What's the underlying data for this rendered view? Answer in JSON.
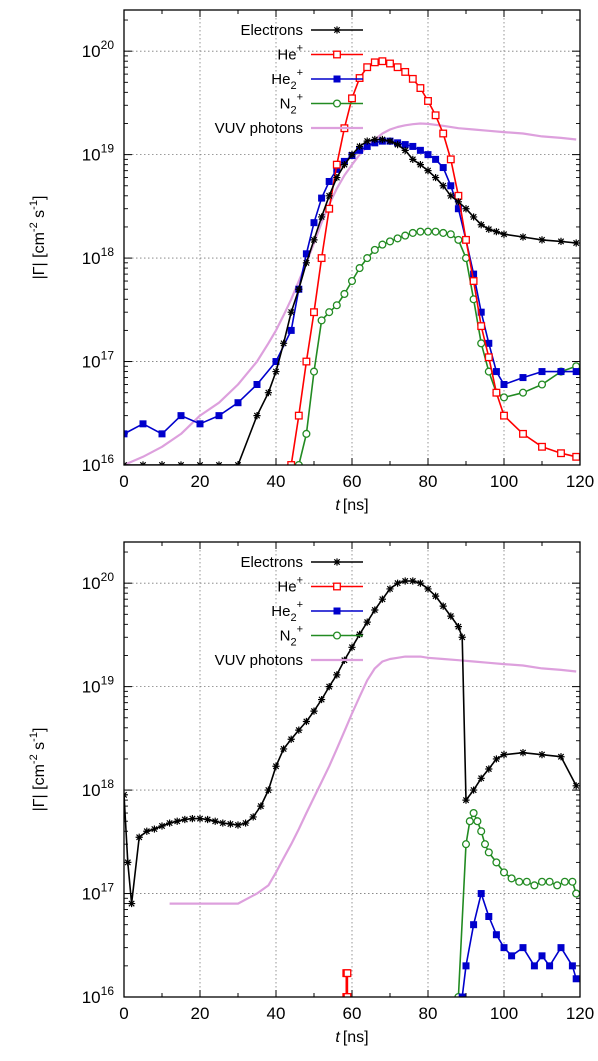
{
  "chart_data": [
    {
      "type": "line",
      "xlabel_italic": "t",
      "xlabel_unit": "[ns]",
      "ylabel_main": "|Γ| [cm",
      "ylabel_exp1": "-2",
      "ylabel_mid": " s",
      "ylabel_exp2": "-1",
      "ylabel_end": "]",
      "xlim": [
        0,
        120
      ],
      "ylim": [
        1e+16,
        2.5e+20
      ],
      "yscale": "log",
      "grid": true,
      "legend_position": "top-left",
      "x_ticks": [
        "0",
        "20",
        "40",
        "60",
        "80",
        "100",
        "120"
      ],
      "y_ticks": [
        {
          "base": "10",
          "exp": "16"
        },
        {
          "base": "10",
          "exp": "17"
        },
        {
          "base": "10",
          "exp": "18"
        },
        {
          "base": "10",
          "exp": "19"
        },
        {
          "base": "10",
          "exp": "20"
        }
      ],
      "series": [
        {
          "key": "electrons",
          "name": "Electrons",
          "name_sub": "",
          "name_sup": "",
          "color": "#000000",
          "marker": "star",
          "x": [
            0,
            5,
            10,
            15,
            20,
            25,
            30,
            35,
            38,
            40,
            42,
            44,
            46,
            48,
            50,
            52,
            54,
            56,
            58,
            60,
            62,
            64,
            66,
            68,
            70,
            72,
            74,
            76,
            78,
            80,
            82,
            84,
            86,
            88,
            90,
            92,
            94,
            96,
            98,
            100,
            105,
            110,
            115,
            119
          ],
          "y": [
            1e+16,
            1e+16,
            1e+16,
            1e+16,
            1e+16,
            1e+16,
            1e+16,
            3e+16,
            5e+16,
            8e+16,
            1.5e+17,
            3e+17,
            5e+17,
            9e+17,
            1.5e+18,
            2.5e+18,
            4e+18,
            6e+18,
            8e+18,
            1e+19,
            1.2e+19,
            1.35e+19,
            1.4e+19,
            1.4e+19,
            1.35e+19,
            1.25e+19,
            1.1e+19,
            9e+18,
            8e+18,
            7e+18,
            6e+18,
            5e+18,
            4e+18,
            3.5e+18,
            3e+18,
            2.5e+18,
            2.1e+18,
            1.9e+18,
            1.8e+18,
            1.7e+18,
            1.6e+18,
            1.5e+18,
            1.45e+18,
            1.4e+18
          ]
        },
        {
          "key": "he",
          "name": "He",
          "name_sub": "",
          "name_sup": "+",
          "color": "#ff0000",
          "marker": "open-square",
          "x": [
            44,
            46,
            48,
            50,
            52,
            54,
            56,
            58,
            60,
            62,
            64,
            66,
            68,
            70,
            72,
            74,
            76,
            78,
            80,
            82,
            84,
            86,
            88,
            90,
            92,
            94,
            96,
            98,
            100,
            105,
            110,
            115,
            119
          ],
          "y": [
            1e+16,
            3e+16,
            1e+17,
            3e+17,
            1e+18,
            3e+18,
            8e+18,
            1.8e+19,
            3.5e+19,
            5.5e+19,
            7e+19,
            7.8e+19,
            8e+19,
            7.6e+19,
            7e+19,
            6.3e+19,
            5.4e+19,
            4.4e+19,
            3.3e+19,
            2.4e+19,
            1.6e+19,
            9e+18,
            4e+18,
            1.5e+18,
            6e+17,
            2.2e+17,
            1.1e+17,
            5e+16,
            3e+16,
            2e+16,
            1.5e+16,
            1.3e+16,
            1.2e+16
          ]
        },
        {
          "key": "he2",
          "name": "He",
          "name_sub": "2",
          "name_sup": "+",
          "color": "#0000cc",
          "marker": "filled-square",
          "x": [
            0,
            5,
            10,
            15,
            20,
            25,
            30,
            35,
            40,
            44,
            46,
            48,
            50,
            52,
            54,
            56,
            58,
            60,
            62,
            64,
            66,
            68,
            70,
            72,
            74,
            76,
            78,
            80,
            82,
            84,
            86,
            88,
            90,
            92,
            94,
            96,
            98,
            100,
            105,
            110,
            115,
            119
          ],
          "y": [
            2e+16,
            2.5e+16,
            2e+16,
            3e+16,
            2.5e+16,
            3e+16,
            4e+16,
            6e+16,
            1e+17,
            2e+17,
            5e+17,
            1.1e+18,
            2.2e+18,
            3.8e+18,
            5.5e+18,
            7.2e+18,
            8.6e+18,
            9.8e+18,
            1.1e+19,
            1.2e+19,
            1.3e+19,
            1.35e+19,
            1.35e+19,
            1.3e+19,
            1.25e+19,
            1.2e+19,
            1.1e+19,
            1e+19,
            9e+18,
            7.5e+18,
            5e+18,
            3e+18,
            1.5e+18,
            7e+17,
            3e+17,
            1.5e+17,
            8e+16,
            6e+16,
            7e+16,
            8e+16,
            8e+16,
            8e+16
          ]
        },
        {
          "key": "n2",
          "name": "N",
          "name_sub": "2",
          "name_sup": "+",
          "color": "#228b22",
          "marker": "open-circle",
          "x": [
            46,
            48,
            50,
            52,
            54,
            56,
            58,
            60,
            62,
            64,
            66,
            68,
            70,
            72,
            74,
            76,
            78,
            80,
            82,
            84,
            86,
            88,
            90,
            92,
            94,
            96,
            98,
            100,
            105,
            110,
            115,
            119
          ],
          "y": [
            1e+16,
            2e+16,
            8e+16,
            2.5e+17,
            3e+17,
            3.5e+17,
            4.5e+17,
            6e+17,
            8e+17,
            1e+18,
            1.2e+18,
            1.35e+18,
            1.45e+18,
            1.55e+18,
            1.65e+18,
            1.75e+18,
            1.8e+18,
            1.8e+18,
            1.8e+18,
            1.75e+18,
            1.7e+18,
            1.5e+18,
            1e+18,
            4e+17,
            1.5e+17,
            8e+16,
            5e+16,
            4.5e+16,
            5e+16,
            6e+16,
            8e+16,
            9e+16
          ]
        },
        {
          "key": "vuv",
          "name": "VUV photons",
          "name_sub": "",
          "name_sup": "",
          "color": "#dda0dd",
          "marker": "none",
          "x": [
            0,
            5,
            10,
            15,
            20,
            25,
            30,
            35,
            38,
            40,
            42,
            44,
            46,
            48,
            50,
            52,
            54,
            56,
            58,
            60,
            62,
            64,
            66,
            68,
            70,
            72,
            74,
            76,
            78,
            80,
            84,
            88,
            92,
            96,
            100,
            105,
            110,
            115,
            119
          ],
          "y": [
            1e+16,
            1.2e+16,
            1.5e+16,
            2e+16,
            3e+16,
            4e+16,
            6e+16,
            1e+17,
            1.5e+17,
            2e+17,
            2.8e+17,
            4e+17,
            6e+17,
            9e+17,
            1.4e+18,
            2.2e+18,
            3.3e+18,
            4.7e+18,
            6.3e+18,
            8e+18,
            1e+19,
            1.2e+19,
            1.4e+19,
            1.6e+19,
            1.75e+19,
            1.85e+19,
            1.92e+19,
            1.97e+19,
            2e+19,
            1.98e+19,
            1.9e+19,
            1.8e+19,
            1.75e+19,
            1.7e+19,
            1.65e+19,
            1.6e+19,
            1.5e+19,
            1.45e+19,
            1.4e+19
          ]
        }
      ]
    },
    {
      "type": "line",
      "xlabel_italic": "t",
      "xlabel_unit": "[ns]",
      "ylabel_main": "|Γ| [cm",
      "ylabel_exp1": "-2",
      "ylabel_mid": " s",
      "ylabel_exp2": "-1",
      "ylabel_end": "]",
      "xlim": [
        0,
        120
      ],
      "ylim": [
        1e+16,
        2.5e+20
      ],
      "yscale": "log",
      "grid": true,
      "legend_position": "top-left",
      "x_ticks": [
        "0",
        "20",
        "40",
        "60",
        "80",
        "100",
        "120"
      ],
      "y_ticks": [
        {
          "base": "10",
          "exp": "16"
        },
        {
          "base": "10",
          "exp": "17"
        },
        {
          "base": "10",
          "exp": "18"
        },
        {
          "base": "10",
          "exp": "19"
        },
        {
          "base": "10",
          "exp": "20"
        }
      ],
      "series": [
        {
          "key": "electrons",
          "name": "Electrons",
          "name_sub": "",
          "name_sup": "",
          "color": "#000000",
          "marker": "star",
          "x": [
            0,
            1,
            2,
            4,
            6,
            8,
            10,
            12,
            14,
            16,
            18,
            20,
            22,
            24,
            26,
            28,
            30,
            32,
            34,
            36,
            38,
            40,
            42,
            44,
            46,
            48,
            50,
            52,
            54,
            56,
            58,
            60,
            62,
            64,
            66,
            68,
            70,
            72,
            74,
            76,
            78,
            80,
            82,
            84,
            86,
            88,
            89,
            90,
            92,
            94,
            96,
            98,
            100,
            105,
            110,
            115,
            119
          ],
          "y": [
            9e+17,
            2e+17,
            8e+16,
            3.5e+17,
            4e+17,
            4.2e+17,
            4.5e+17,
            4.8e+17,
            5e+17,
            5.2e+17,
            5.3e+17,
            5.3e+17,
            5.2e+17,
            5e+17,
            4.8e+17,
            4.7e+17,
            4.6e+17,
            4.8e+17,
            5.5e+17,
            7e+17,
            1e+18,
            1.7e+18,
            2.5e+18,
            3.1e+18,
            3.8e+18,
            4.6e+18,
            5.8e+18,
            7.5e+18,
            1e+19,
            1.3e+19,
            1.8e+19,
            2.4e+19,
            3.2e+19,
            4.2e+19,
            5.5e+19,
            7e+19,
            8.8e+19,
            1e+20,
            1.05e+20,
            1.05e+20,
            1e+20,
            8.8e+19,
            7.5e+19,
            6e+19,
            4.8e+19,
            3.8e+19,
            3e+19,
            8e+17,
            1e+18,
            1.3e+18,
            1.6e+18,
            2e+18,
            2.2e+18,
            2.3e+18,
            2.2e+18,
            2.1e+18,
            1.1e+18
          ]
        },
        {
          "key": "he",
          "name": "He",
          "name_sub": "",
          "name_sup": "+",
          "color": "#ff0000",
          "marker": "open-square",
          "x": [
            58.5,
            58.5,
            58.8,
            58.8
          ],
          "y": [
            1e+16,
            1.7e+16,
            1.7e+16,
            1e+16
          ]
        },
        {
          "key": "he2",
          "name": "He",
          "name_sub": "2",
          "name_sup": "+",
          "color": "#0000cc",
          "marker": "filled-square",
          "x": [
            89,
            90,
            92,
            94,
            96,
            98,
            100,
            102,
            105,
            108,
            110,
            112,
            115,
            118,
            119
          ],
          "y": [
            1e+16,
            2e+16,
            5e+16,
            1e+17,
            6e+16,
            4e+16,
            3e+16,
            2.5e+16,
            3e+16,
            2e+16,
            2.5e+16,
            2e+16,
            3e+16,
            2e+16,
            1.5e+16
          ]
        },
        {
          "key": "n2",
          "name": "N",
          "name_sub": "2",
          "name_sup": "+",
          "color": "#228b22",
          "marker": "open-circle",
          "x": [
            88,
            90,
            91,
            92,
            93,
            94,
            95,
            96,
            98,
            100,
            102,
            104,
            106,
            108,
            110,
            112,
            114,
            116,
            118,
            119
          ],
          "y": [
            1e+16,
            3e+17,
            5e+17,
            6e+17,
            5e+17,
            4e+17,
            3e+17,
            2.5e+17,
            2e+17,
            1.6e+17,
            1.4e+17,
            1.3e+17,
            1.3e+17,
            1.2e+17,
            1.3e+17,
            1.3e+17,
            1.2e+17,
            1.3e+17,
            1.3e+17,
            1e+17
          ]
        },
        {
          "key": "vuv",
          "name": "VUV photons",
          "name_sub": "",
          "name_sup": "",
          "color": "#dda0dd",
          "marker": "none",
          "x": [
            12,
            15,
            20,
            25,
            30,
            35,
            38,
            40,
            42,
            44,
            46,
            48,
            50,
            52,
            54,
            56,
            58,
            60,
            62,
            64,
            66,
            68,
            70,
            72,
            74,
            76,
            78,
            80,
            84,
            88,
            92,
            96,
            100,
            105,
            110,
            115,
            119
          ],
          "y": [
            8e+16,
            8e+16,
            8e+16,
            8e+16,
            8e+16,
            1e+17,
            1.2e+17,
            1.6e+17,
            2.2e+17,
            3e+17,
            4.2e+17,
            6e+17,
            8.5e+17,
            1.2e+18,
            1.7e+18,
            2.5e+18,
            3.7e+18,
            5.5e+18,
            8e+18,
            1.15e+19,
            1.5e+19,
            1.75e+19,
            1.85e+19,
            1.9e+19,
            1.95e+19,
            1.95e+19,
            1.95e+19,
            1.9e+19,
            1.85e+19,
            1.8e+19,
            1.75e+19,
            1.7e+19,
            1.65e+19,
            1.6e+19,
            1.5e+19,
            1.45e+19,
            1.4e+19
          ]
        }
      ]
    }
  ]
}
